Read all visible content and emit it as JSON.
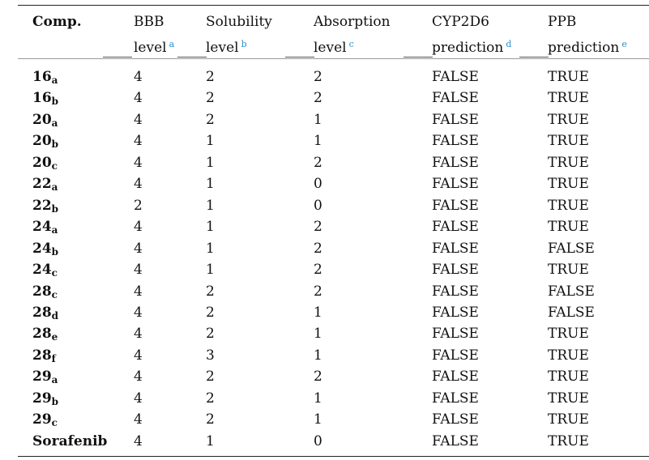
{
  "header": {
    "comp": "Comp.",
    "bbb": {
      "line1": "BBB",
      "line2": "level",
      "note": "a"
    },
    "solubility": {
      "line1": "Solubility",
      "line2": "level",
      "note": "b"
    },
    "absorption": {
      "line1": "Absorption",
      "line2": "level",
      "note": "c"
    },
    "cyp2d6": {
      "line1": "CYP2D6",
      "line2": "prediction",
      "note": "d"
    },
    "ppb": {
      "line1": "PPB",
      "line2": "prediction",
      "note": "e"
    }
  },
  "rows": [
    {
      "base": "16",
      "sub": "a",
      "bbb": "4",
      "sol": "2",
      "abs": "2",
      "cyp": "FALSE",
      "ppb": "TRUE"
    },
    {
      "base": "16",
      "sub": "b",
      "bbb": "4",
      "sol": "2",
      "abs": "2",
      "cyp": "FALSE",
      "ppb": "TRUE"
    },
    {
      "base": "20",
      "sub": "a",
      "bbb": "4",
      "sol": "2",
      "abs": "1",
      "cyp": "FALSE",
      "ppb": "TRUE"
    },
    {
      "base": "20",
      "sub": "b",
      "bbb": "4",
      "sol": "1",
      "abs": "1",
      "cyp": "FALSE",
      "ppb": "TRUE"
    },
    {
      "base": "20",
      "sub": "c",
      "bbb": "4",
      "sol": "1",
      "abs": "2",
      "cyp": "FALSE",
      "ppb": "TRUE"
    },
    {
      "base": "22",
      "sub": "a",
      "bbb": "4",
      "sol": "1",
      "abs": "0",
      "cyp": "FALSE",
      "ppb": "TRUE"
    },
    {
      "base": "22",
      "sub": "b",
      "bbb": "2",
      "sol": "1",
      "abs": "0",
      "cyp": "FALSE",
      "ppb": "TRUE"
    },
    {
      "base": "24",
      "sub": "a",
      "bbb": "4",
      "sol": "1",
      "abs": "2",
      "cyp": "FALSE",
      "ppb": "TRUE"
    },
    {
      "base": "24",
      "sub": "b",
      "bbb": "4",
      "sol": "1",
      "abs": "2",
      "cyp": "FALSE",
      "ppb": "FALSE"
    },
    {
      "base": "24",
      "sub": "c",
      "bbb": "4",
      "sol": "1",
      "abs": "2",
      "cyp": "FALSE",
      "ppb": "TRUE"
    },
    {
      "base": "28",
      "sub": "c",
      "bbb": "4",
      "sol": "2",
      "abs": "2",
      "cyp": "FALSE",
      "ppb": "FALSE"
    },
    {
      "base": "28",
      "sub": "d",
      "bbb": "4",
      "sol": "2",
      "abs": "1",
      "cyp": "FALSE",
      "ppb": "FALSE"
    },
    {
      "base": "28",
      "sub": "e",
      "bbb": "4",
      "sol": "2",
      "abs": "1",
      "cyp": "FALSE",
      "ppb": "TRUE"
    },
    {
      "base": "28",
      "sub": "f",
      "bbb": "4",
      "sol": "3",
      "abs": "1",
      "cyp": "FALSE",
      "ppb": "TRUE"
    },
    {
      "base": "29",
      "sub": "a",
      "bbb": "4",
      "sol": "2",
      "abs": "2",
      "cyp": "FALSE",
      "ppb": "TRUE"
    },
    {
      "base": "29",
      "sub": "b",
      "bbb": "4",
      "sol": "2",
      "abs": "1",
      "cyp": "FALSE",
      "ppb": "TRUE"
    },
    {
      "base": "29",
      "sub": "c",
      "bbb": "4",
      "sol": "2",
      "abs": "1",
      "cyp": "FALSE",
      "ppb": "TRUE"
    },
    {
      "base": "Sorafenib",
      "sub": "",
      "bbb": "4",
      "sol": "1",
      "abs": "0",
      "cyp": "FALSE",
      "ppb": "TRUE"
    }
  ]
}
